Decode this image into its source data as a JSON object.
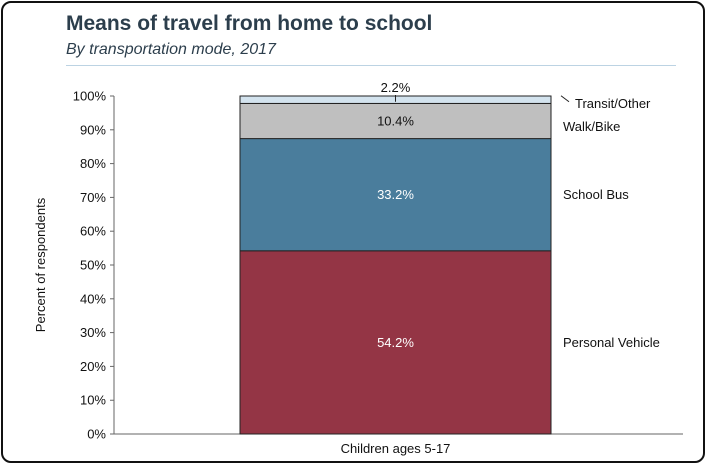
{
  "title": "Means of travel from home to school",
  "subtitle": "By transportation mode, 2017",
  "chart_data": {
    "type": "bar",
    "stacked": true,
    "categories": [
      "Children ages 5-17"
    ],
    "ylabel": "Percent of respondents",
    "xlabel": "",
    "ylim": [
      0,
      100
    ],
    "ytick_labels": [
      "0%",
      "10%",
      "20%",
      "30%",
      "40%",
      "50%",
      "60%",
      "70%",
      "80%",
      "90%",
      "100%"
    ],
    "series": [
      {
        "name": "Personal Vehicle",
        "values": [
          54.2
        ],
        "label": "54.2%",
        "color": "#943545",
        "label_color": "#ffffff"
      },
      {
        "name": "School Bus",
        "values": [
          33.2
        ],
        "label": "33.2%",
        "color": "#4a7d9c",
        "label_color": "#ffffff"
      },
      {
        "name": "Walk/Bike",
        "values": [
          10.4
        ],
        "label": "10.4%",
        "color": "#bfbfbf",
        "label_color": "#111111"
      },
      {
        "name": "Transit/Other",
        "values": [
          2.2
        ],
        "label": "2.2%",
        "color": "#d3e3ee",
        "label_color": "#111111"
      }
    ],
    "grid": false,
    "legend": "right, labels beside segments"
  }
}
